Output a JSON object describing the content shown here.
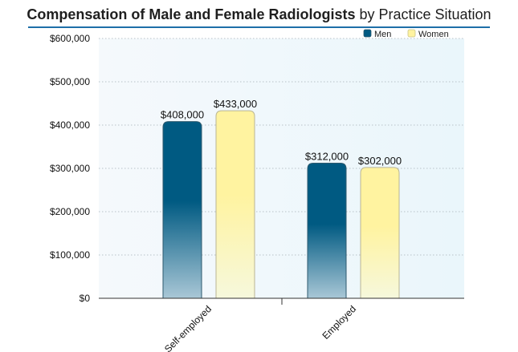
{
  "chart_data": {
    "type": "bar",
    "title": "Compensation of Male and Female Radiologists",
    "subtitle": "by Practice Situation",
    "categories": [
      "Self-employed",
      "Employed"
    ],
    "series": [
      {
        "name": "Men",
        "color": "#005a82",
        "values": [
          408000,
          312000
        ],
        "labels": [
          "$408,000",
          "$312,000"
        ]
      },
      {
        "name": "Women",
        "color": "#fff3a0",
        "values": [
          433000,
          302000
        ],
        "labels": [
          "$433,000",
          "$302,000"
        ]
      }
    ],
    "yticks": [
      0,
      100000,
      200000,
      300000,
      400000,
      500000,
      600000
    ],
    "ytick_labels": [
      "$0",
      "$100,000",
      "$200,000",
      "$300,000",
      "$400,000",
      "$500,000",
      "$600,000"
    ],
    "ylim": [
      0,
      600000
    ],
    "xlabel": "",
    "ylabel": "",
    "grid": true,
    "legend_position": "top-right"
  }
}
